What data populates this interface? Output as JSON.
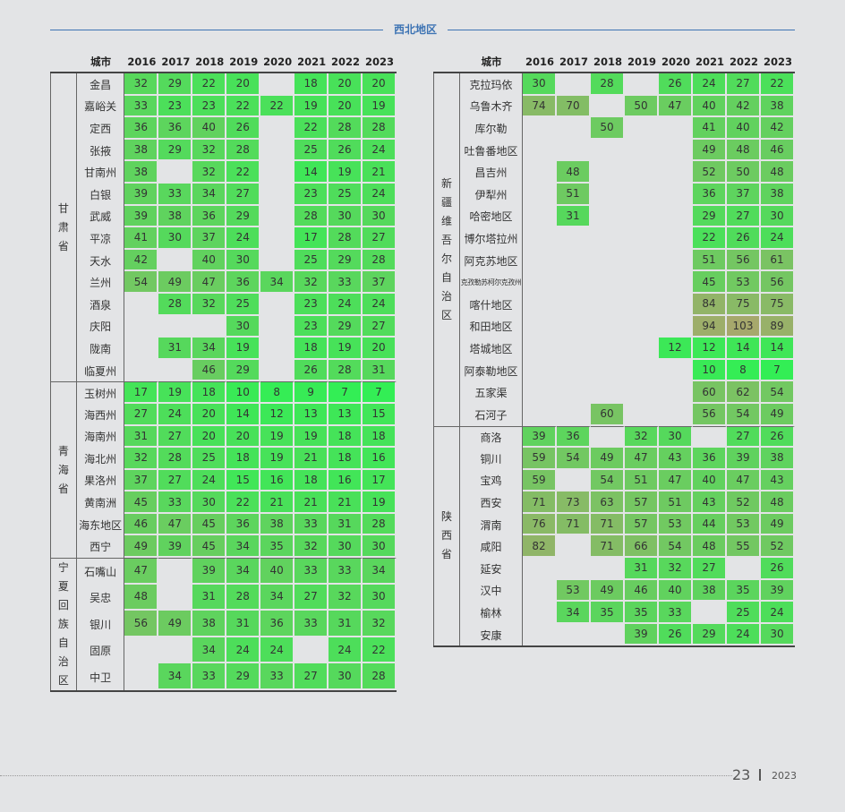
{
  "header": {
    "title": "西北地区"
  },
  "years": [
    "2016",
    "2017",
    "2018",
    "2019",
    "2020",
    "2021",
    "2022",
    "2023"
  ],
  "city_col": "城市",
  "left": [
    {
      "province": [
        "甘",
        "肃",
        "省"
      ],
      "cities": [
        {
          "name": "金昌",
          "v": [
            32,
            29,
            22,
            20,
            null,
            18,
            20,
            20
          ]
        },
        {
          "name": "嘉峪关",
          "v": [
            33,
            23,
            23,
            22,
            22,
            19,
            20,
            19
          ]
        },
        {
          "name": "定西",
          "v": [
            36,
            36,
            40,
            26,
            null,
            22,
            28,
            28
          ]
        },
        {
          "name": "张掖",
          "v": [
            38,
            29,
            32,
            28,
            null,
            25,
            26,
            24
          ]
        },
        {
          "name": "甘南州",
          "v": [
            38,
            null,
            32,
            22,
            null,
            14,
            19,
            21
          ]
        },
        {
          "name": "白银",
          "v": [
            39,
            33,
            34,
            27,
            null,
            23,
            25,
            24
          ]
        },
        {
          "name": "武威",
          "v": [
            39,
            38,
            36,
            29,
            null,
            28,
            30,
            30
          ]
        },
        {
          "name": "平凉",
          "v": [
            41,
            30,
            37,
            24,
            null,
            17,
            28,
            27
          ]
        },
        {
          "name": "天水",
          "v": [
            42,
            null,
            40,
            30,
            null,
            25,
            29,
            28
          ]
        },
        {
          "name": "兰州",
          "v": [
            54,
            49,
            47,
            36,
            34,
            32,
            33,
            37
          ]
        },
        {
          "name": "酒泉",
          "v": [
            null,
            28,
            32,
            25,
            null,
            23,
            24,
            24
          ]
        },
        {
          "name": "庆阳",
          "v": [
            null,
            null,
            null,
            30,
            null,
            23,
            29,
            27
          ]
        },
        {
          "name": "陇南",
          "v": [
            null,
            31,
            34,
            19,
            null,
            18,
            19,
            20
          ]
        },
        {
          "name": "临夏州",
          "v": [
            null,
            null,
            46,
            29,
            null,
            26,
            28,
            31
          ]
        }
      ]
    },
    {
      "province": [
        "青",
        "海",
        "省"
      ],
      "cities": [
        {
          "name": "玉树州",
          "v": [
            17,
            19,
            18,
            10,
            8,
            9,
            7,
            7
          ]
        },
        {
          "name": "海西州",
          "v": [
            27,
            24,
            20,
            14,
            12,
            13,
            13,
            15
          ]
        },
        {
          "name": "海南州",
          "v": [
            31,
            27,
            20,
            20,
            19,
            19,
            18,
            18
          ]
        },
        {
          "name": "海北州",
          "v": [
            32,
            28,
            25,
            18,
            19,
            21,
            18,
            16
          ]
        },
        {
          "name": "果洛州",
          "v": [
            37,
            27,
            24,
            15,
            16,
            18,
            16,
            17
          ]
        },
        {
          "name": "黄南洲",
          "v": [
            45,
            33,
            30,
            22,
            21,
            21,
            21,
            19
          ]
        },
        {
          "name": "海东地区",
          "v": [
            46,
            47,
            45,
            36,
            38,
            33,
            31,
            28
          ]
        },
        {
          "name": "西宁",
          "v": [
            49,
            39,
            45,
            34,
            35,
            32,
            30,
            30
          ]
        }
      ]
    },
    {
      "province": [
        "宁",
        "夏",
        "回",
        "族",
        "自",
        "治",
        "区"
      ],
      "cities": [
        {
          "name": "石嘴山",
          "v": [
            47,
            null,
            39,
            34,
            40,
            33,
            33,
            34
          ]
        },
        {
          "name": "吴忠",
          "v": [
            48,
            null,
            31,
            28,
            34,
            27,
            32,
            30
          ]
        },
        {
          "name": "银川",
          "v": [
            56,
            49,
            38,
            31,
            36,
            33,
            31,
            32
          ]
        },
        {
          "name": "固原",
          "v": [
            null,
            null,
            34,
            24,
            24,
            null,
            24,
            22
          ]
        },
        {
          "name": "中卫",
          "v": [
            null,
            34,
            33,
            29,
            33,
            27,
            30,
            28
          ]
        }
      ]
    }
  ],
  "right": [
    {
      "province": [
        "新",
        "疆",
        "维",
        "吾",
        "尔",
        "自",
        "治",
        "区"
      ],
      "cities": [
        {
          "name": "克拉玛依",
          "v": [
            30,
            null,
            28,
            null,
            26,
            24,
            27,
            22
          ]
        },
        {
          "name": "乌鲁木齐",
          "v": [
            74,
            70,
            null,
            50,
            47,
            40,
            42,
            38
          ]
        },
        {
          "name": "库尔勒",
          "v": [
            null,
            null,
            50,
            null,
            null,
            41,
            40,
            42
          ]
        },
        {
          "name": "吐鲁番地区",
          "v": [
            null,
            null,
            null,
            null,
            null,
            49,
            48,
            46
          ]
        },
        {
          "name": "昌吉州",
          "v": [
            null,
            48,
            null,
            null,
            null,
            52,
            50,
            48
          ]
        },
        {
          "name": "伊犁州",
          "v": [
            null,
            51,
            null,
            null,
            null,
            36,
            37,
            38
          ]
        },
        {
          "name": "哈密地区",
          "v": [
            null,
            31,
            null,
            null,
            null,
            29,
            27,
            30
          ]
        },
        {
          "name": "博尔塔拉州",
          "v": [
            null,
            null,
            null,
            null,
            null,
            22,
            26,
            24
          ]
        },
        {
          "name": "阿克苏地区",
          "v": [
            null,
            null,
            null,
            null,
            null,
            51,
            56,
            61
          ]
        },
        {
          "name": "克孜勒苏柯尔克孜州",
          "v": [
            null,
            null,
            null,
            null,
            null,
            45,
            53,
            56
          ],
          "small": true
        },
        {
          "name": "喀什地区",
          "v": [
            null,
            null,
            null,
            null,
            null,
            84,
            75,
            75
          ]
        },
        {
          "name": "和田地区",
          "v": [
            null,
            null,
            null,
            null,
            null,
            94,
            103,
            89
          ]
        },
        {
          "name": "塔城地区",
          "v": [
            null,
            null,
            null,
            null,
            12,
            12,
            14,
            14
          ]
        },
        {
          "name": "阿泰勒地区",
          "v": [
            null,
            null,
            null,
            null,
            null,
            10,
            8,
            7
          ]
        },
        {
          "name": "五家渠",
          "v": [
            null,
            null,
            null,
            null,
            null,
            60,
            62,
            54
          ]
        },
        {
          "name": "石河子",
          "v": [
            null,
            null,
            60,
            null,
            null,
            56,
            54,
            49
          ]
        }
      ]
    },
    {
      "province": [
        "陕",
        "西",
        "省"
      ],
      "cities": [
        {
          "name": "商洛",
          "v": [
            39,
            36,
            null,
            32,
            30,
            null,
            27,
            26
          ]
        },
        {
          "name": "铜川",
          "v": [
            59,
            54,
            49,
            47,
            43,
            36,
            39,
            38
          ]
        },
        {
          "name": "宝鸡",
          "v": [
            59,
            null,
            54,
            51,
            47,
            40,
            47,
            43
          ]
        },
        {
          "name": "西安",
          "v": [
            71,
            73,
            63,
            57,
            51,
            43,
            52,
            48
          ]
        },
        {
          "name": "渭南",
          "v": [
            76,
            71,
            71,
            57,
            53,
            44,
            53,
            49
          ]
        },
        {
          "name": "咸阳",
          "v": [
            82,
            null,
            71,
            66,
            54,
            48,
            55,
            52
          ]
        },
        {
          "name": "延安",
          "v": [
            null,
            null,
            null,
            31,
            32,
            27,
            null,
            26
          ]
        },
        {
          "name": "汉中",
          "v": [
            null,
            53,
            49,
            46,
            40,
            38,
            35,
            39
          ]
        },
        {
          "name": "榆林",
          "v": [
            null,
            34,
            35,
            35,
            33,
            null,
            25,
            24
          ]
        },
        {
          "name": "安康",
          "v": [
            null,
            null,
            null,
            39,
            26,
            29,
            24,
            30
          ]
        }
      ]
    }
  ],
  "footer": {
    "page": "23",
    "year": "2023"
  },
  "colors": {
    "low": "#33ee55",
    "high": "#a6a86c",
    "background": "#e3e4e6",
    "title": "#3e74b4"
  }
}
